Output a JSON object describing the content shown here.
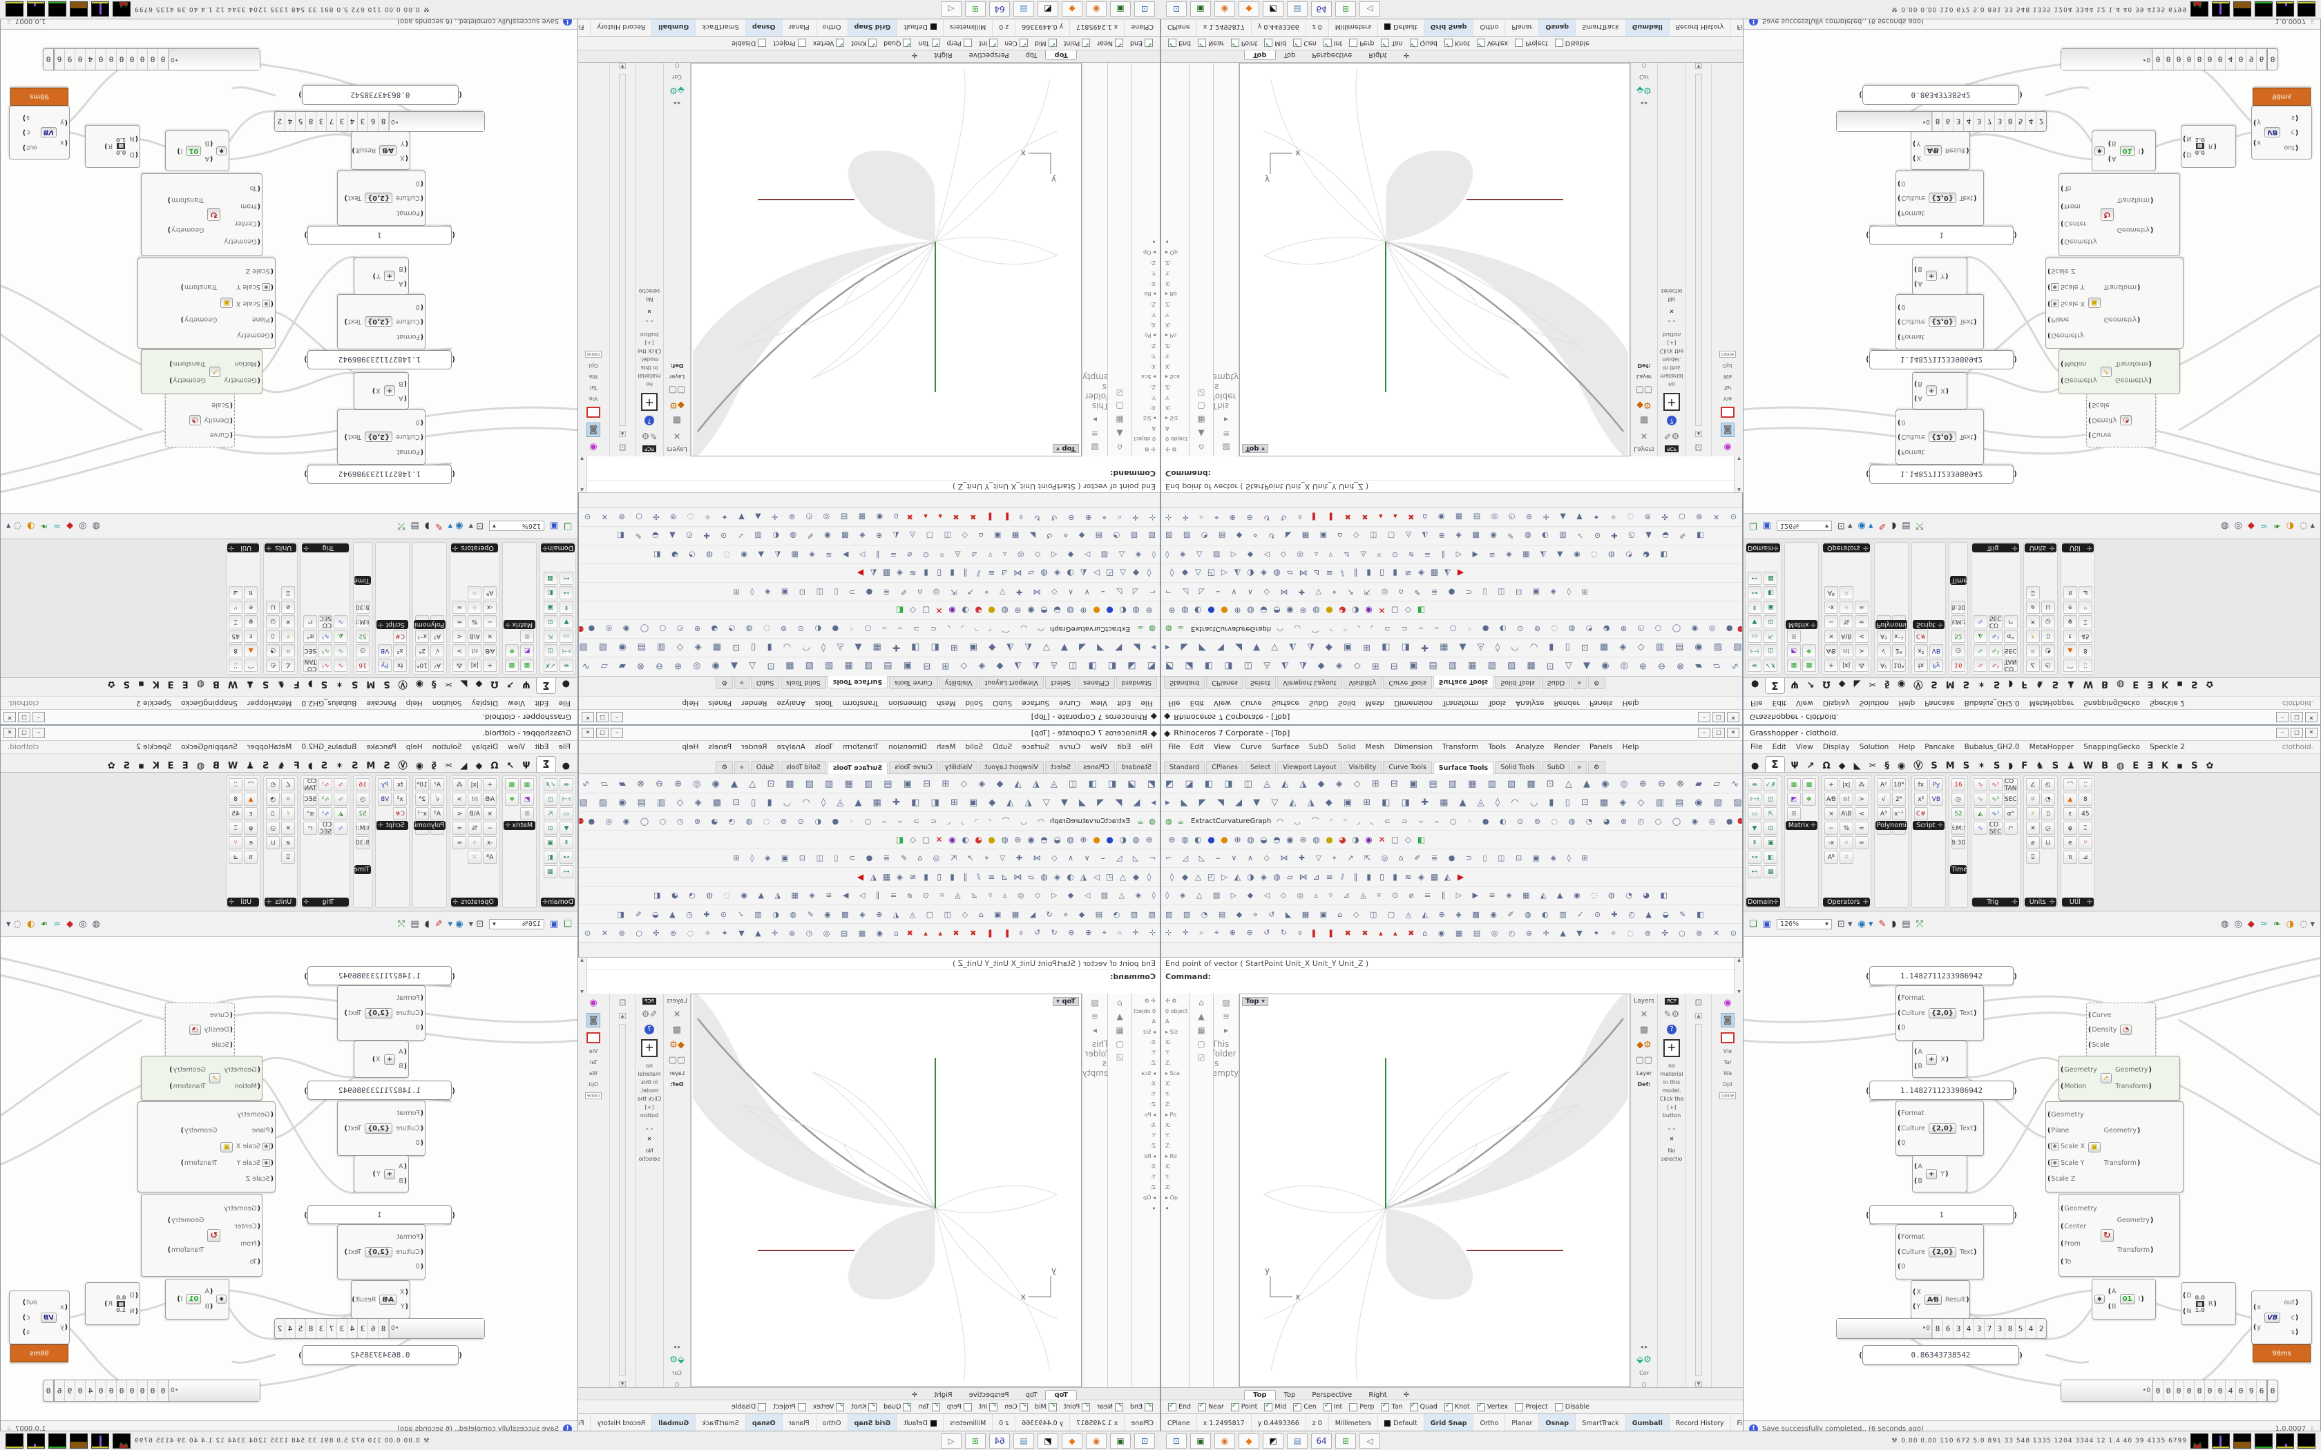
{
  "colors": {
    "accent_green": "#2e8b2e",
    "axis_green": "#2f8f2f",
    "axis_red": "#8b3a3a",
    "badge_orange": "#d2691e",
    "selected_tint": "#eef4ea",
    "slate_icon": "#5a6b8e",
    "status_hl": "#dce9f5"
  },
  "rhino": {
    "title": "Rhinoceros 7 Corporate - [Top]",
    "logo": "🦏",
    "btn_min": "–",
    "btn_max": "□",
    "btn_close": "✕",
    "menu": [
      "File",
      "Edit",
      "View",
      "Curve",
      "Surface",
      "SubD",
      "Solid",
      "Mesh",
      "Dimension",
      "Transform",
      "Tools",
      "Analyze",
      "Render",
      "Panels",
      "Help"
    ],
    "tabs": [
      {
        "g": "Standard"
      },
      {
        "g": "CPlanes"
      },
      {
        "g": "Select"
      },
      {
        "g": "Viewport Layout"
      },
      {
        "g": "Visibility"
      },
      {
        "g": "Curve Tools"
      },
      {
        "g": "Surface Tools",
        "a": 1
      },
      {
        "g": "Solid Tools"
      },
      {
        "g": "SubD"
      },
      {
        "g": "»"
      },
      {
        "g": "⚙"
      }
    ],
    "row1": "◩ ◪ ◧ ◨ ◫ ◬ ◭ ◮ ◆ ◈ ◇ ⊞ ⊟ ▣ ▤ ▥ ▦ ▧ ▨ ▩ ⊡ △ ▲ ◉ ◎ ⊕ ⊖ ⊗ ▰ ▱ ∿ ≋ ≡ ◊ ○ ● ◐ »",
    "row2": "▸ ◣ ◤ ◥ ◢ ▼ ▽ ◭ ◮ ◆ ▣ ⊞ ◧ ◨ ✚ ▦ ▲ ◬ ◊ ◠ ◡ ▮ ▯ ⊡ ▩ ◈ ◇ ▥ ▤ ◉ ▧ ▨",
    "row3_icons": "◠ ◡ ⌒ ◜ ◝ ◞ ◟ ⊂ ⊃ ⌣ ⌢ ○ ◦ ● ◐ ⊙ ⊚ ◌ ◍ ◔ ◕ ⊛ ◴ ○ ◯ ◉ ◎ ●",
    "row3_people": "⚉ ⚉ ⚉ ⚉ ⚉ ⚉",
    "row3_clocks": "◴ ◷",
    "search_label": "ExtractCurvatureGraph",
    "row4": [
      {
        "g": "⊕"
      },
      {
        "g": "◍"
      },
      {
        "g": "◐"
      },
      {
        "g": "●",
        "c": "#2244cc"
      },
      {
        "g": "●",
        "c": "#e08a00"
      },
      {
        "g": "⊕"
      },
      {
        "g": "◍"
      },
      {
        "g": "◒"
      },
      {
        "g": "◓"
      },
      {
        "g": "◉"
      },
      {
        "g": "⊛"
      },
      {
        "g": "◍"
      },
      {
        "g": "●",
        "c": "#c8a400"
      },
      {
        "g": "◕",
        "c": "#cc3333"
      },
      {
        "g": "◑"
      },
      {
        "g": "◉",
        "c": "#7722aa"
      },
      {
        "g": "✕",
        "c": "#cc1111"
      },
      {
        "g": "▢"
      },
      {
        "g": "◇"
      },
      {
        "g": "◧",
        "c": "#33aa44"
      }
    ],
    "row5": "⌐ ◿ ◺ ⌣ ∨ ∧ ◇ ⋈ ✚ ▽ ⌖ ↗ ⇱ ◎ ⌂ ✐ ≣ ● ⊃ ▯ ◫ ⊡ ▣ ◈ ◊ ⊞",
    "row6": [
      {
        "g": "◊"
      },
      {
        "g": "◆"
      },
      {
        "g": "△"
      },
      {
        "g": "◰"
      },
      {
        "g": "▷"
      },
      {
        "g": "◭"
      },
      {
        "g": "◑"
      },
      {
        "g": "◈"
      },
      {
        "g": "◍"
      },
      {
        "g": "▱"
      },
      {
        "g": "⋈"
      },
      {
        "g": "⊿"
      },
      {
        "g": "≡"
      },
      {
        "g": "⫽"
      },
      {
        "g": "∥"
      },
      {
        "g": "▮"
      },
      {
        "g": "▯"
      },
      {
        "g": "▮"
      },
      {
        "g": "≋"
      },
      {
        "g": "◈"
      },
      {
        "g": "▦"
      },
      {
        "g": "◭"
      },
      {
        "g": "▶",
        "c": "#cc1111"
      }
    ],
    "row7": "◊ ◈ △ ▨ ▷ ◆ ◁ ◇ ◎ ▵ ▿ ⊿ ◬ ⌗ ⊙ ⌀ ≡ ∥ ▷ ▶ ≋ ◈ ▦ ◭ ▲ ◉ ◌ ◍ ◔ ◕ ◧",
    "row8": "▨ ▧ ◔ ▤ ◆ ⋄ ↺ ◣ ▦ ▣ ⌂ ◇ ◫ ▢ ◬ ◭ ⊕ ◈ ▩ ◉ ✐ ◍ ◐ ▥ ✓ ⊙ ✚ ◴ ▲ ◒ ✎ ◧",
    "row9a": "⊹ ✛ ⌕ ⌖ ⊕ ⊖ ↺ ↻ ⌽",
    "row9b": "❚ ❚ ✖ ✖ ▴ ▴ ✖",
    "row9c": "⌂ ◉ ▦ ▤ ◎ ◴ ⊕ ✛ ▲ ▼ ✦ ✧ ◌ ⊚ ✣ ○ ⊛ ✕ ⊙ ✺ ◯",
    "cmd_history": "End point of vector ( StartPoint  Unit_X  Unit_Y  Unit_Z )",
    "cmd_prompt": "Command:",
    "dock1": [
      "✣ ⚙",
      "0 object",
      "A",
      "▸ Siz",
      "X:",
      "Y:",
      "Z:",
      "▸ Sca",
      "X:",
      "Y:",
      "Z:",
      "▸ Po",
      "X:",
      "Y:",
      "Z:",
      "▸ Ro",
      "X:",
      "Y:",
      "Z:",
      "▸ Op",
      "◂"
    ],
    "dock2": [
      "⌂",
      "▲",
      "▦",
      "▢",
      "☑"
    ],
    "dock3": [
      "▨",
      "≡",
      "▸",
      "This folder is empty."
    ],
    "viewport": {
      "label": "Top",
      "dd": "▾",
      "axis_x": "x",
      "axis_y": "y"
    },
    "layers": {
      "title": "Layers",
      "i1": "✕",
      "i2": "▩",
      "i3": "◆⚙",
      "i4": "▢▢",
      "hdr": "Layer",
      "val": "Def:",
      "btns": "◂  ▸",
      "low_ic": "⬙⚙",
      "low": "Cor",
      "dot": "○"
    },
    "materials": {
      "rcp": "RCP",
      "brush": "✎⚙",
      "q": "?",
      "plus": "+",
      "txt": "no material in this model. Click the [+] button",
      "vv": "⌄⌄",
      "x": "✕",
      "nosel": "No selectio"
    },
    "colC": {
      "mon": "⊡",
      "up": "▲",
      "dn": "▼"
    },
    "colD": {
      "wheel": "◉",
      "cam": "◙",
      "vie": "Vie",
      "tar": "Tar",
      "wa": "Wa",
      "opt": "Opt",
      "rame": "rame"
    },
    "vtabs": [
      {
        "g": "Top",
        "a": 1
      },
      {
        "g": "Top"
      },
      {
        "g": "Perspective"
      },
      {
        "g": "Right"
      },
      {
        "g": "✛"
      }
    ],
    "osnap": [
      {
        "g": "End",
        "k": 1
      },
      {
        "g": "Near",
        "k": 1
      },
      {
        "g": "Point",
        "k": 1
      },
      {
        "g": "Mid",
        "k": 1
      },
      {
        "g": "Cen",
        "k": 1
      },
      {
        "g": "Int",
        "k": 1
      },
      {
        "g": "Perp",
        "k": 0
      },
      {
        "g": "Tan",
        "k": 1
      },
      {
        "g": "Quad",
        "k": 1
      },
      {
        "g": "Knot",
        "k": 1
      },
      {
        "g": "Vertex",
        "k": 1
      },
      {
        "g": "Project",
        "k": 0
      },
      {
        "g": "Disable",
        "k": 0
      }
    ],
    "status": [
      {
        "g": "CPlane"
      },
      {
        "g": "x 1.2495817"
      },
      {
        "g": "y 0.4493366"
      },
      {
        "g": "z 0"
      },
      {
        "g": "Millimeters"
      },
      {
        "g": "Default",
        "sw": 1
      },
      {
        "g": "Grid Snap",
        "b": 1
      },
      {
        "g": "Ortho"
      },
      {
        "g": "Planar"
      },
      {
        "g": "Osnap",
        "b": 1
      },
      {
        "g": "SmartTrack"
      },
      {
        "g": "Gumball",
        "b": 1
      },
      {
        "g": "Record History"
      },
      {
        "g": "Filter"
      }
    ]
  },
  "gh": {
    "title": "Grasshopper - clothoid.",
    "menu": [
      "File",
      "Edit",
      "View",
      "Display",
      "Solution",
      "Help",
      "Pancake",
      "Bubalus_GH2.0",
      "MetaHopper",
      "SnappingGecko",
      "Speckle 2"
    ],
    "doc_label": "clothoid.",
    "tabs": [
      {
        "g": "●"
      },
      {
        "g": "Σ",
        "a": 1
      },
      {
        "g": "Ψ"
      },
      {
        "g": "↗"
      },
      {
        "g": "Ω"
      },
      {
        "g": "◆"
      },
      {
        "g": "◣"
      },
      {
        "g": "✂"
      },
      {
        "g": "§"
      },
      {
        "g": "◉"
      },
      {
        "g": "Ⓥ"
      },
      {
        "g": "S"
      },
      {
        "g": "M"
      },
      {
        "g": "S"
      },
      {
        "g": "✶"
      },
      {
        "g": "S"
      },
      {
        "g": "◗"
      },
      {
        "g": "F"
      },
      {
        "g": "♞"
      },
      {
        "g": "S"
      },
      {
        "g": "♟"
      },
      {
        "g": "W"
      },
      {
        "g": "B"
      },
      {
        "g": "◍"
      },
      {
        "g": "E"
      },
      {
        "g": "Ǝ"
      },
      {
        "g": "K"
      },
      {
        "g": "▪"
      },
      {
        "g": "S"
      },
      {
        "g": "✿"
      }
    ],
    "groups": [
      {
        "label": "Domain",
        "pl": "✛",
        "rows": 7,
        "mid": 0,
        "icons": [
          {
            "g": "⇹",
            "c": "#2e8b57"
          },
          {
            "g": "⊦⊣",
            "c": "#2e8b57"
          },
          {
            "g": "▭",
            "c": "#2e8b57"
          },
          {
            "g": "▼",
            "c": "#2e8b57"
          },
          {
            "g": "⇞",
            "c": "#2e8b57"
          },
          {
            "g": "⊶",
            "c": "#2e8b57"
          },
          {
            "g": "⊷",
            "c": "#2e8b57"
          },
          {
            "g": "✓✗",
            "c": "#2e8b57"
          },
          {
            "g": "◫",
            "c": "#2e8b57"
          },
          {
            "g": "⇱",
            "c": "#2e8b57"
          },
          {
            "g": "⊡",
            "c": "#2e8b57"
          },
          {
            "g": "▣",
            "c": "#2e8b57"
          },
          {
            "g": "◧",
            "c": "#2e8b57"
          },
          {
            "g": "▦",
            "c": "#2e8b57"
          }
        ]
      },
      {
        "label": "Matrix",
        "pl": "✛",
        "rows": 3,
        "mid": 1,
        "icons": [
          {
            "g": "▦",
            "c": "#2faa2f"
          },
          {
            "g": "◩",
            "c": "#8833cc"
          },
          {
            "g": "⊞",
            "c": "#888"
          },
          {
            "g": "▩",
            "c": "#2faa2f"
          },
          {
            "g": "❖",
            "c": "#2faa2f"
          }
        ]
      },
      {
        "label": "Operators",
        "pl": "✛",
        "rows": 6,
        "mid": 0,
        "icons": [
          {
            "g": "+"
          },
          {
            "g": "A⁄B"
          },
          {
            "g": "×"
          },
          {
            "g": "−"
          },
          {
            "g": "-x"
          },
          {
            "g": "Aᴮ"
          },
          {
            "g": "|x|"
          },
          {
            "g": "n!"
          },
          {
            "g": "A\\B"
          },
          {
            "g": "%"
          },
          {
            "g": "⁘"
          },
          {
            "g": "⁙"
          },
          {
            "g": "⁂"
          },
          {
            "g": ">"
          },
          {
            "g": "<"
          },
          {
            "g": "="
          },
          {
            "g": "≈"
          }
        ]
      },
      {
        "label": "Polynomials",
        "pl": "",
        "rows": 4,
        "mid": 1,
        "icons": [
          {
            "g": "A²"
          },
          {
            "g": "√"
          },
          {
            "g": "A³"
          },
          {
            "g": "∛"
          },
          {
            "g": "10ᴬ"
          },
          {
            "g": "2ᴬ"
          },
          {
            "g": "x⁻¹"
          },
          {
            "g": "eᴬ"
          }
        ]
      },
      {
        "label": "Script",
        "pl": "✛",
        "rows": 3,
        "mid": 1,
        "icons": [
          {
            "g": "fx"
          },
          {
            "g": "x²"
          },
          {
            "g": "C#",
            "c": "#aa2222"
          },
          {
            "g": "Py",
            "c": "#2255aa"
          },
          {
            "g": "VB",
            "c": "#223399"
          }
        ]
      },
      {
        "label": "Time",
        "pl": "",
        "rows": 5,
        "mid": 2,
        "icons": [
          {
            "g": "16",
            "c": "#cc2222"
          },
          {
            "g": "◷"
          },
          {
            "g": "52",
            "c": "#2e8b2e"
          },
          {
            "g": "H:M:S"
          },
          {
            "g": "8:30"
          }
        ]
      },
      {
        "label": "Trig",
        "pl": "✛",
        "rows": 4,
        "mid": 0,
        "icons": [
          {
            "g": "∿",
            "c": "#cc3333"
          },
          {
            "g": "∿",
            "c": "#2e8b2e"
          },
          {
            "g": "◭",
            "c": "#2e8b2e"
          },
          {
            "g": "∿",
            "c": "#2255cc"
          },
          {
            "g": "∿¹",
            "c": "#cc3333"
          },
          {
            "g": "∿¹",
            "c": "#2e8b2e"
          },
          {
            "g": "∿¹",
            "c": "#2255cc"
          },
          {
            "g": "CO SEC"
          },
          {
            "g": "CO TAN"
          },
          {
            "g": "SEC"
          },
          {
            "g": "α°"
          },
          {
            "g": "rᶜ"
          }
        ]
      },
      {
        "label": "Units",
        "pl": "✛",
        "rows": 6,
        "mid": 0,
        "icons": [
          {
            "g": "∠"
          },
          {
            "g": "⌗"
          },
          {
            "g": "⚡",
            "c": "#cc8800"
          },
          {
            "g": "✕"
          },
          {
            "g": "⌀"
          },
          {
            "g": "⍗"
          },
          {
            "g": "◴"
          },
          {
            "g": "◔"
          },
          {
            "g": "▯"
          },
          {
            "g": "◶"
          },
          {
            "g": "⊔"
          }
        ]
      },
      {
        "label": "Util",
        "pl": "✛",
        "rows": 6,
        "mid": 0,
        "icons": [
          {
            "g": "⌒"
          },
          {
            "g": "▲",
            "c": "#dd6600"
          },
          {
            "g": "ε"
          },
          {
            "g": "φ"
          },
          {
            "g": "e"
          },
          {
            "g": "π"
          },
          {
            "g": "⁚⁚"
          },
          {
            "g": "8"
          },
          {
            "g": "45"
          },
          {
            "g": "⌶"
          },
          {
            "g": "⑂",
            "c": "#aa2222"
          },
          {
            "g": "⊿"
          }
        ]
      }
    ],
    "tools": {
      "new": "❏",
      "save": "▣",
      "zoom": "126%",
      "zdd": "▾",
      "focus": "⊡ ▾",
      "eye": "◉ ▾",
      "pen": "✎",
      "horn": "◗",
      "card": "▤",
      "axes": "⤱",
      "s1": "◍",
      "s2": "◎",
      "s3": "◆",
      "s4": "≈",
      "s5": "❧",
      "s6": "◑",
      "sel": "◌ ▾"
    },
    "canvas": {
      "panel_a": "1.1482711233986942",
      "panel_b": "1.1482711233986942",
      "panel_c": "1",
      "panel_d": "0.86343738542",
      "fmt": {
        "in1": "Format",
        "in2": "Culture",
        "in3": "0",
        "icon": "{2,0}",
        "out": "Text"
      },
      "add": {
        "in1": "A",
        "in2": "B",
        "icon": "+",
        "out_x": "X",
        "out_y": "Y"
      },
      "div": {
        "in1": "X",
        "in2": "Y",
        "icon": "A⁄B",
        "out": "Result"
      },
      "slider_a_pre": "‣0",
      "slider_a": [
        "8",
        "6",
        "3",
        "4",
        "3",
        "7",
        "3",
        "8",
        "5",
        "4",
        "2"
      ],
      "slider_b_pre": "‣0",
      "slider_b": [
        "0",
        "0",
        "0",
        "0",
        "0",
        "0",
        "0",
        "4",
        "0",
        "9",
        "6"
      ],
      "slider_b_tail": "0",
      "cluster": {
        "in1": "Curve",
        "in2": "Density",
        "in3": "Scale",
        "icon": "◔"
      },
      "move": {
        "in1": "Geometry",
        "in2": "Motion",
        "icon": "➚",
        "out1": "Geometry",
        "out2": "Transform"
      },
      "scale": {
        "in1": "Geometry",
        "in2": "Plane",
        "in3": "Scale X",
        "in4": "Scale Y",
        "in5": "Scale Z",
        "star": "✱",
        "icon": "▣",
        "out1": "Geometry",
        "out2": "Transform"
      },
      "rot": {
        "in1": "Geometry",
        "in2": "Center",
        "in3": "From",
        "in4": "To",
        "icon": "↻",
        "out1": "Geometry",
        "out2": "Transform"
      },
      "gate": {
        "star": "✱",
        "in1": "A",
        "in2": "B",
        "icon": "01",
        "out": "I"
      },
      "remap": {
        "in1": "D",
        "in2": "N",
        "icon1": "0.0",
        "icon2": "1.0",
        "out": "R"
      },
      "vb": {
        "in1": "x",
        "in2": "y",
        "icon": "VB",
        "out1": "out",
        "out2": "c",
        "out3": "s",
        "badge": "98ms"
      }
    },
    "status_msg": "Save successfully completed.. (6 seconds ago)",
    "status_bang": "!",
    "version": "1.0.0007"
  },
  "taskbar": {
    "icons": [
      {
        "g": "⊡",
        "c": "#3366aa"
      },
      {
        "g": "▣",
        "c": "#226622"
      },
      {
        "g": "◉",
        "c": "#e07020"
      },
      {
        "g": "◆",
        "c": "#ee7711"
      },
      {
        "g": "◩",
        "c": "#111111"
      },
      {
        "g": "▤",
        "c": "#5588bb"
      },
      {
        "g": "64",
        "c": "#3333aa"
      },
      {
        "g": "⊞",
        "c": "#44aa44"
      },
      {
        "g": "◁",
        "c": "#666666"
      }
    ],
    "tray_icon": "⚒",
    "tray_text": "0.00 0.00  110  672  5.0  891  33  548  1335 1204 3344  12  1.4  40  39  4135 6799"
  }
}
